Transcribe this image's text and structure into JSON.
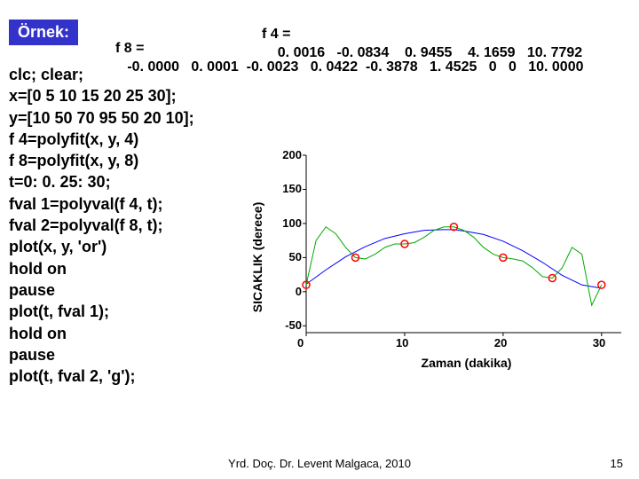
{
  "ornek": "Örnek:",
  "f4": {
    "label": "f 4 =",
    "values": "    0. 0016   -0. 0834    0. 9455    4. 1659   10. 7792"
  },
  "f8": {
    "label": "f 8 =",
    "values": "   -0. 0000   0. 0001  -0. 0023   0. 0422  -0. 3878   1. 4525   0   0   10. 0000"
  },
  "code": [
    "clc; clear;",
    "x=[0 5 10 15 20 25 30];",
    "y=[10 50 70 95 50 20 10];",
    "f 4=polyfit(x, y, 4)",
    "f 8=polyfit(x, y, 8)",
    "t=0: 0. 25: 30;",
    "fval 1=polyval(f 4, t);",
    "fval 2=polyval(f 8, t);",
    "plot(x, y, 'or')",
    "hold on",
    "pause",
    "plot(t, fval 1);",
    "hold on",
    "pause",
    "plot(t, fval 2, 'g');"
  ],
  "chart": {
    "type": "line+scatter",
    "xlabel": "Zaman (dakika)",
    "ylabel": "SICAKLIK (derece)",
    "xlim": [
      0,
      32
    ],
    "ylim": [
      -60,
      200
    ],
    "yticks": [
      -50,
      0,
      50,
      100,
      150,
      200
    ],
    "xticks": [
      0,
      10,
      20,
      30
    ],
    "background_color": "#ffffff",
    "axis_color": "#000000",
    "label_fontsize": 14,
    "tick_fontsize": 13,
    "scatter": {
      "x": [
        0,
        5,
        10,
        15,
        20,
        25,
        30
      ],
      "y": [
        10,
        50,
        70,
        95,
        50,
        20,
        10
      ],
      "marker": "circle",
      "marker_edge_color": "#ff0000",
      "marker_face_color": "none",
      "marker_size": 6
    },
    "line1": {
      "color": "#0000ff",
      "width": 1,
      "xdata": [
        0,
        2,
        4,
        6,
        8,
        10,
        12,
        14,
        15,
        16,
        18,
        20,
        22,
        24,
        26,
        28,
        30
      ],
      "ydata": [
        11,
        32,
        51,
        66,
        78,
        85,
        90,
        91,
        91,
        89,
        84,
        74,
        60,
        43,
        24,
        10,
        5
      ]
    },
    "line2": {
      "color": "#00aa00",
      "width": 1,
      "xdata": [
        0,
        1,
        2,
        3,
        4,
        5,
        6,
        7,
        8,
        9,
        10,
        11,
        12,
        13,
        14,
        15,
        16,
        17,
        18,
        19,
        20,
        21,
        22,
        23,
        24,
        25,
        26,
        27,
        28,
        29,
        30
      ],
      "ydata": [
        10,
        75,
        95,
        85,
        65,
        50,
        48,
        55,
        65,
        70,
        70,
        72,
        80,
        90,
        95,
        95,
        90,
        80,
        65,
        55,
        50,
        48,
        45,
        35,
        22,
        20,
        35,
        65,
        55,
        -20,
        10
      ]
    }
  },
  "footer": "Yrd. Doç. Dr. Levent Malgaca, 2010",
  "pagenum": "15"
}
